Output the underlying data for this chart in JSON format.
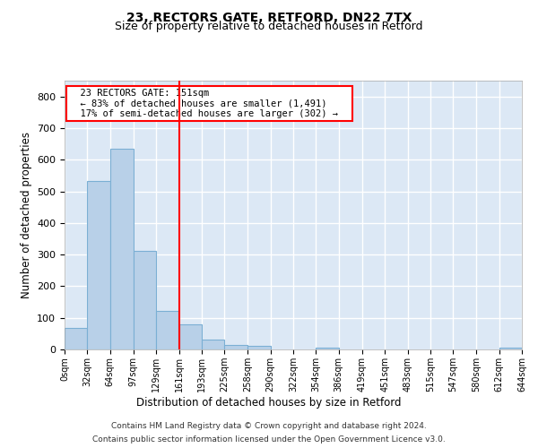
{
  "title1": "23, RECTORS GATE, RETFORD, DN22 7TX",
  "title2": "Size of property relative to detached houses in Retford",
  "xlabel": "Distribution of detached houses by size in Retford",
  "ylabel": "Number of detached properties",
  "annotation_line1": "23 RECTORS GATE: 151sqm",
  "annotation_line2": "← 83% of detached houses are smaller (1,491)",
  "annotation_line3": "17% of semi-detached houses are larger (302) →",
  "footer1": "Contains HM Land Registry data © Crown copyright and database right 2024.",
  "footer2": "Contains public sector information licensed under the Open Government Licence v3.0.",
  "bin_edges": [
    0,
    32,
    64,
    97,
    129,
    161,
    193,
    225,
    258,
    290,
    322,
    354,
    386,
    419,
    451,
    483,
    515,
    547,
    580,
    612,
    644
  ],
  "bar_heights": [
    68,
    534,
    635,
    311,
    121,
    78,
    30,
    15,
    10,
    0,
    0,
    5,
    0,
    0,
    0,
    0,
    0,
    0,
    0,
    5
  ],
  "bar_color": "#b8d0e8",
  "bar_edge_color": "#7bafd4",
  "vline_x": 161,
  "vline_color": "red",
  "ylim": [
    0,
    850
  ],
  "yticks": [
    0,
    100,
    200,
    300,
    400,
    500,
    600,
    700,
    800
  ],
  "background_color": "#dce8f5",
  "grid_color": "#ffffff",
  "annotation_box_color": "red",
  "title1_fontsize": 10,
  "title2_fontsize": 9,
  "footer_fontsize": 6.5
}
